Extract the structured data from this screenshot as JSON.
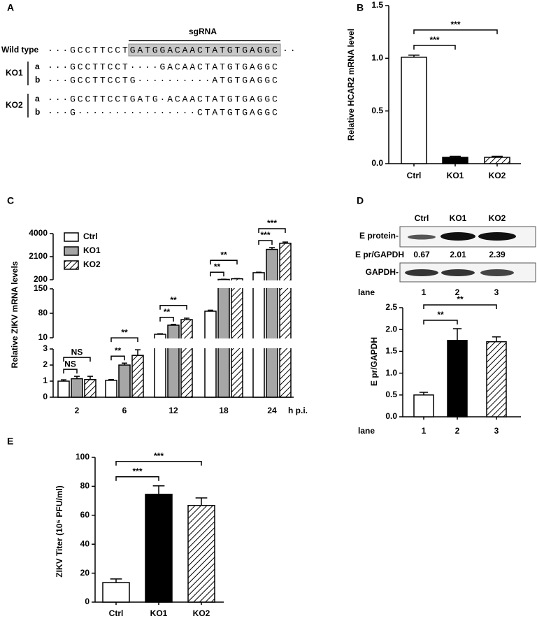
{
  "panel_a": {
    "label": "A",
    "sgrna": "sgRNA",
    "wild_type": {
      "name": "Wild type",
      "sequence_left": "···GCCTTCCT",
      "target": "GATGGACAACTATGTGAGGC",
      "sequence_right": "··"
    },
    "mutants": [
      {
        "name": "KO1",
        "alleles": [
          {
            "name": "a",
            "sequence": "···GCCTTCCT····GACAACTATGTGAGGC"
          },
          {
            "name": "b",
            "sequence": "···GCCTTCCTG··········ATGTGAGGC"
          }
        ]
      },
      {
        "name": "KO2",
        "alleles": [
          {
            "name": "a",
            "sequence": "···GCCTTCCTGATG·ACAACTATGTGAGGC"
          },
          {
            "name": "b",
            "sequence": "···G················CTATGTGAGGC"
          }
        ]
      }
    ]
  },
  "blot": {
    "columns": [
      "Ctrl",
      "KO1",
      "KO2"
    ],
    "rows": [
      "E protein-",
      "GAPDH-"
    ],
    "ratio_label": "E pr/GAPDH",
    "ratios": [
      0.67,
      2.01,
      2.39
    ],
    "lane_label": "lane",
    "lanes": [
      "1",
      "2",
      "3"
    ]
  },
  "chart_data": [
    {
      "panel": "B",
      "type": "bar",
      "ylabel": "Relative HCAR2 mRNA level",
      "categories": [
        "Ctrl",
        "KO1",
        "KO2"
      ],
      "values": [
        1.01,
        0.06,
        0.06
      ],
      "errors": [
        0.02,
        0.01,
        0.01
      ],
      "colors": [
        "#ffffff",
        "#000000",
        "#ffffff"
      ],
      "hatch": [
        false,
        false,
        true
      ],
      "ylim": [
        0,
        1.5
      ],
      "yticks": [
        {
          "value": 0,
          "label": "0.0"
        },
        {
          "value": 0.5,
          "label": "0.5"
        },
        {
          "value": 1,
          "label": "1.0"
        },
        {
          "value": 1.5,
          "label": "1.5"
        }
      ],
      "significance": [
        "***",
        "***"
      ]
    },
    {
      "panel": "C",
      "type": "grouped_bar",
      "ylabel": "Relative ZIKV mRNA levels",
      "xlabel": "h p.i.",
      "categories": [
        "2",
        "6",
        "12",
        "18",
        "24"
      ],
      "series": [
        {
          "name": "Ctrl",
          "color": "#ffffff",
          "hatch": false,
          "values": [
            1.0,
            1.05,
            20,
            86,
            780
          ],
          "errors": [
            0.08,
            0.05,
            1.5,
            3,
            40
          ]
        },
        {
          "name": "KO1",
          "color": "#a6a6a6",
          "hatch": false,
          "values": [
            1.15,
            2.0,
            46,
            230,
            2700
          ],
          "errors": [
            0.15,
            0.12,
            2.5,
            15,
            150
          ]
        },
        {
          "name": "KO2",
          "color": "#ffffff",
          "hatch": true,
          "values": [
            1.1,
            2.6,
            62,
            280,
            3200
          ],
          "errors": [
            0.2,
            0.35,
            4,
            15,
            100
          ]
        }
      ],
      "y_segments": [
        {
          "ylim": [
            0,
            3
          ],
          "yticks": [
            0,
            1,
            2,
            3
          ]
        },
        {
          "ylim": [
            10,
            150
          ],
          "yticks": [
            10,
            80,
            150
          ]
        },
        {
          "ylim": [
            200,
            4000
          ],
          "yticks": [
            200,
            2100,
            4000
          ]
        }
      ],
      "significance": [
        [
          "NS",
          "NS"
        ],
        [
          "**",
          "**"
        ],
        [
          "**",
          "**"
        ],
        [
          "**",
          "**"
        ],
        [
          "***",
          "***"
        ]
      ]
    },
    {
      "panel": "D",
      "type": "bar",
      "ylabel": "E pr/GAPDH",
      "xlabel": "lane",
      "categories": [
        "1",
        "2",
        "3"
      ],
      "values": [
        0.5,
        1.75,
        1.72
      ],
      "errors": [
        0.06,
        0.27,
        0.11
      ],
      "colors": [
        "#ffffff",
        "#000000",
        "#ffffff"
      ],
      "hatch": [
        false,
        false,
        true
      ],
      "ylim": [
        0,
        2.5
      ],
      "yticks": [
        {
          "value": 0,
          "label": "0.0"
        },
        {
          "value": 0.5,
          "label": "0.5"
        },
        {
          "value": 1,
          "label": "1.0"
        },
        {
          "value": 1.5,
          "label": "1.5"
        },
        {
          "value": 2,
          "label": "2.0"
        },
        {
          "value": 2.5,
          "label": "2.5"
        }
      ],
      "significance": [
        "**",
        "**"
      ]
    },
    {
      "panel": "E",
      "type": "bar",
      "ylabel": "ZIKV Titer (10⁵ PFU/ml)",
      "categories": [
        "Ctrl",
        "KO1",
        "KO2"
      ],
      "values": [
        13.5,
        74.5,
        66.8
      ],
      "errors": [
        2.5,
        5.8,
        5.2
      ],
      "colors": [
        "#ffffff",
        "#000000",
        "#ffffff"
      ],
      "hatch": [
        false,
        false,
        true
      ],
      "ylim": [
        0,
        100
      ],
      "yticks": [
        0,
        20,
        40,
        60,
        80,
        100
      ],
      "significance": [
        "***",
        "***"
      ]
    }
  ]
}
